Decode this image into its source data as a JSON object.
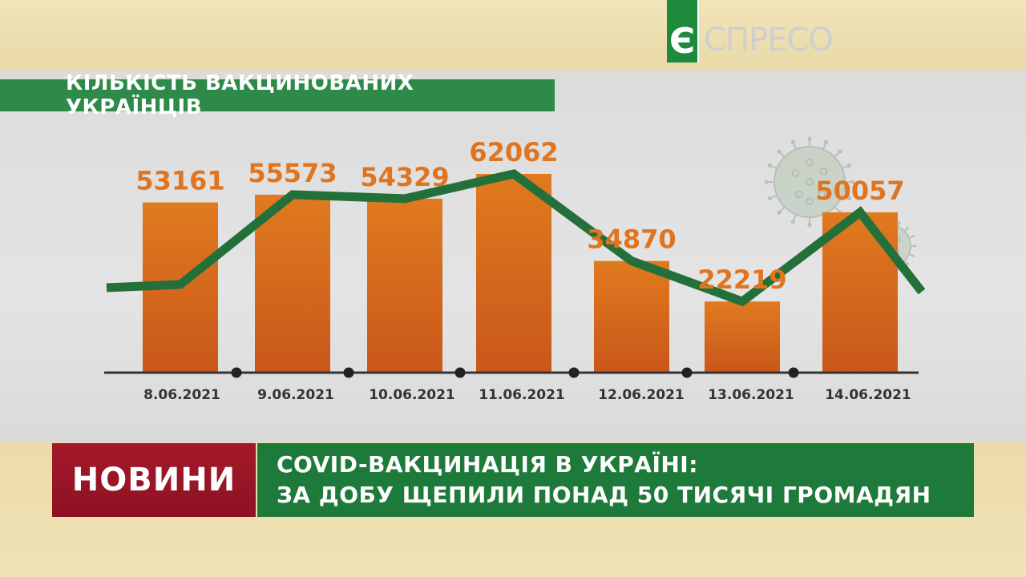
{
  "channel": {
    "logo_letter": "Є",
    "logo_text": "СПРЕСО"
  },
  "chart_data": {
    "type": "bar",
    "title": "КІЛЬКІСТЬ ВАКЦИНОВАНИХ УКРАЇНЦІВ",
    "categories": [
      "8.06.2021",
      "9.06.2021",
      "10.06.2021",
      "11.06.2021",
      "12.06.2021",
      "13.06.2021",
      "14.06.2021"
    ],
    "values": [
      53161,
      55573,
      54329,
      62062,
      34870,
      22219,
      50057
    ],
    "data_labels": [
      "53161",
      "55573",
      "54329",
      "62062",
      "34870",
      "22219",
      "50057"
    ],
    "overlay_line": "trend line through bar values",
    "colors": {
      "bar": "#e07a1f",
      "bar_dark": "#c9571a",
      "label": "#e0741f",
      "line": "#23703a",
      "axis": "#333333"
    }
  },
  "news": {
    "badge": "НОВИНИ",
    "headline_line1": "COVID-ВАКЦИНАЦІЯ В УКРАЇНІ:",
    "headline_line2": "ЗА ДОБУ ЩЕПИЛИ ПОНАД 50 ТИСЯЧІ ГРОМАДЯН"
  },
  "icons": [
    "virus-icon",
    "virus-small-icon"
  ]
}
